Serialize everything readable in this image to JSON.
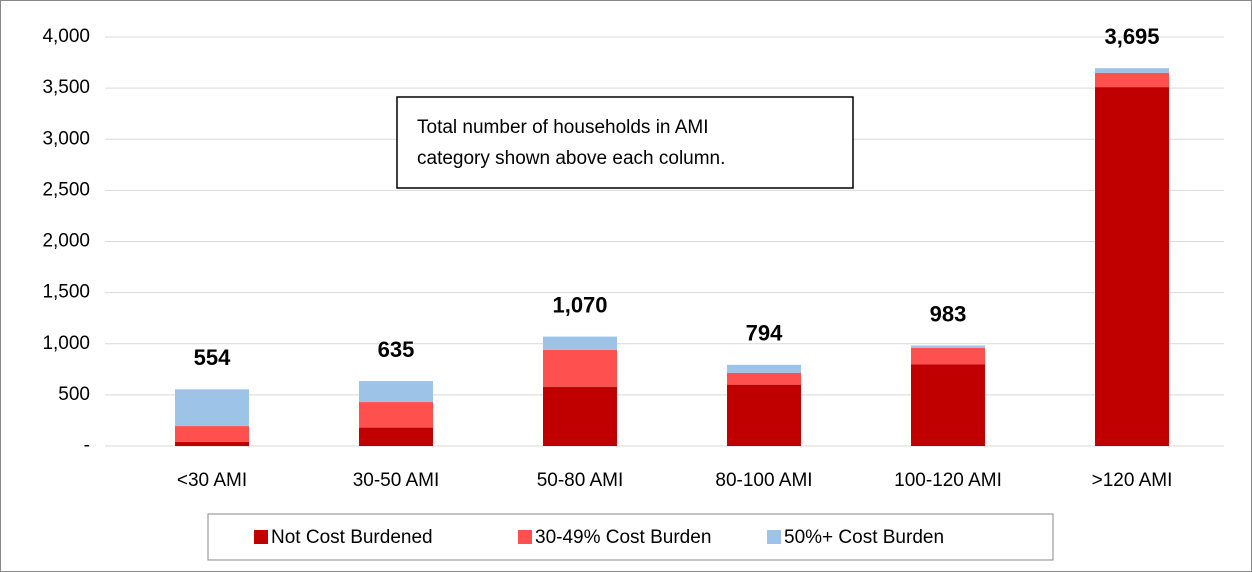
{
  "chart_data": {
    "type": "stacked_bar",
    "categories": [
      "<30 AMI",
      "30-50 AMI",
      "50-80 AMI",
      "80-100 AMI",
      "100-120 AMI",
      ">120 AMI"
    ],
    "series": [
      {
        "name": "Not Cost Burdened",
        "color": "#c00000",
        "values": [
          40,
          180,
          580,
          600,
          800,
          3510
        ]
      },
      {
        "name": "30-49% Cost Burden",
        "color": "#ff5050",
        "values": [
          155,
          250,
          360,
          115,
          160,
          140
        ]
      },
      {
        "name": "50%+ Cost Burden",
        "color": "#9dc3e6",
        "values": [
          359,
          205,
          130,
          79,
          23,
          45
        ]
      }
    ],
    "total_labels": [
      "554",
      "635",
      "1,070",
      "794",
      "983",
      "3,695"
    ],
    "annotation": [
      "Total number of households in AMI",
      "category shown above each column."
    ],
    "ylim": [
      0,
      4000
    ],
    "yticks": [
      {
        "value": 0,
        "label": "-"
      },
      500,
      {
        "value": 1000,
        "label": "1,000"
      },
      {
        "value": 1500,
        "label": "1,500"
      },
      {
        "value": 2000,
        "label": "2,000"
      },
      {
        "value": 2500,
        "label": "2,500"
      },
      {
        "value": 3000,
        "label": "3,000"
      },
      {
        "value": 3500,
        "label": "3,500"
      },
      {
        "value": 4000,
        "label": "4,000"
      }
    ],
    "grid": true,
    "legend": "bottom"
  }
}
